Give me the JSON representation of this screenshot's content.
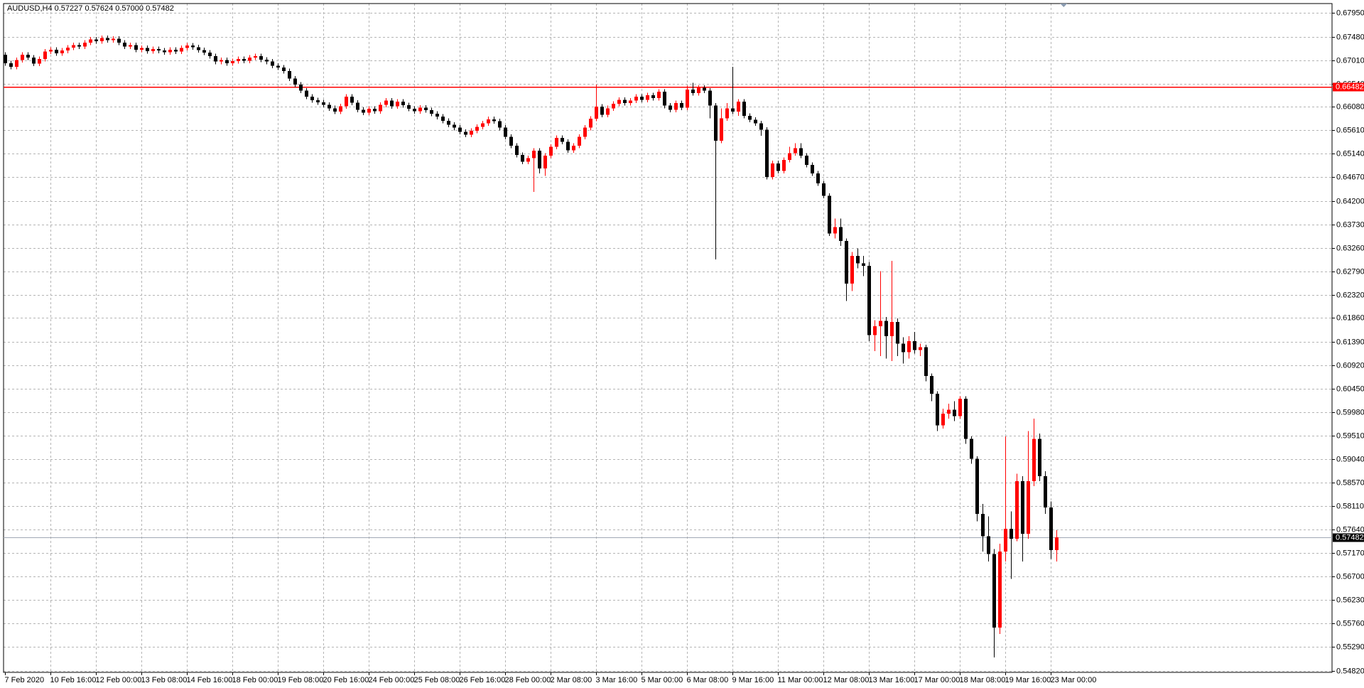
{
  "chart_data": {
    "type": "candlestick",
    "title": "AUDUSD,H4  0.57227 0.57624 0.57000 0.57482",
    "up_color": "#ff0000",
    "down_color": "#000000",
    "grid": true,
    "level": {
      "value": 0.66482,
      "label": "0.66482",
      "color": "#ff0000"
    },
    "last": {
      "value": 0.57482,
      "label": "0.57482"
    },
    "ylim": [
      0.5482,
      0.6795
    ],
    "yticks": [
      {
        "value": 0.6795,
        "label": "0.67950"
      },
      {
        "value": 0.6748,
        "label": "0.67480"
      },
      {
        "value": 0.6701,
        "label": "0.67010"
      },
      {
        "value": 0.6654,
        "label": "0.66540"
      },
      {
        "value": 0.6608,
        "label": "0.66080"
      },
      {
        "value": 0.6561,
        "label": "0.65610"
      },
      {
        "value": 0.6514,
        "label": "0.65140"
      },
      {
        "value": 0.6467,
        "label": "0.64670"
      },
      {
        "value": 0.642,
        "label": "0.64200"
      },
      {
        "value": 0.6373,
        "label": "0.63730"
      },
      {
        "value": 0.6326,
        "label": "0.63260"
      },
      {
        "value": 0.6279,
        "label": "0.62790"
      },
      {
        "value": 0.6232,
        "label": "0.62320"
      },
      {
        "value": 0.6186,
        "label": "0.61860"
      },
      {
        "value": 0.6139,
        "label": "0.61390"
      },
      {
        "value": 0.6092,
        "label": "0.60920"
      },
      {
        "value": 0.6045,
        "label": "0.60450"
      },
      {
        "value": 0.5998,
        "label": "0.59980"
      },
      {
        "value": 0.5951,
        "label": "0.59510"
      },
      {
        "value": 0.5904,
        "label": "0.59040"
      },
      {
        "value": 0.5857,
        "label": "0.58570"
      },
      {
        "value": 0.5811,
        "label": "0.58110"
      },
      {
        "value": 0.5764,
        "label": "0.57640"
      },
      {
        "value": 0.5717,
        "label": "0.57170"
      },
      {
        "value": 0.567,
        "label": "0.56700"
      },
      {
        "value": 0.5623,
        "label": "0.56230"
      },
      {
        "value": 0.5576,
        "label": "0.55760"
      },
      {
        "value": 0.5529,
        "label": "0.55290"
      },
      {
        "value": 0.5482,
        "label": "0.54820"
      }
    ],
    "categories": [
      "7 Feb 2020",
      null,
      null,
      null,
      null,
      null,
      null,
      null,
      "10 Feb 16:00",
      null,
      null,
      null,
      null,
      null,
      null,
      null,
      "12 Feb 00:00",
      null,
      null,
      null,
      null,
      null,
      null,
      null,
      "13 Feb 08:00",
      null,
      null,
      null,
      null,
      null,
      null,
      null,
      "14 Feb 16:00",
      null,
      null,
      null,
      null,
      null,
      null,
      null,
      "18 Feb 00:00",
      null,
      null,
      null,
      null,
      null,
      null,
      null,
      "19 Feb 08:00",
      null,
      null,
      null,
      null,
      null,
      null,
      null,
      "20 Feb 16:00",
      null,
      null,
      null,
      null,
      null,
      null,
      null,
      "24 Feb 00:00",
      null,
      null,
      null,
      null,
      null,
      null,
      null,
      "25 Feb 08:00",
      null,
      null,
      null,
      null,
      null,
      null,
      null,
      "26 Feb 16:00",
      null,
      null,
      null,
      null,
      null,
      null,
      null,
      "28 Feb 00:00",
      null,
      null,
      null,
      null,
      null,
      null,
      null,
      "2 Mar 08:00",
      null,
      null,
      null,
      null,
      null,
      null,
      null,
      "3 Mar 16:00",
      null,
      null,
      null,
      null,
      null,
      null,
      null,
      "5 Mar 00:00",
      null,
      null,
      null,
      null,
      null,
      null,
      null,
      "6 Mar 08:00",
      null,
      null,
      null,
      null,
      null,
      null,
      null,
      "9 Mar 16:00",
      null,
      null,
      null,
      null,
      null,
      null,
      null,
      "11 Mar 00:00",
      null,
      null,
      null,
      null,
      null,
      null,
      null,
      "12 Mar 08:00",
      null,
      null,
      null,
      null,
      null,
      null,
      null,
      "13 Mar 16:00",
      null,
      null,
      null,
      null,
      null,
      null,
      null,
      "17 Mar 00:00",
      null,
      null,
      null,
      null,
      null,
      null,
      null,
      "18 Mar 08:00",
      null,
      null,
      null,
      null,
      null,
      null,
      null,
      "19 Mar 16:00",
      null,
      null,
      null,
      null,
      null,
      null,
      null,
      "23 Mar 00:00",
      null
    ],
    "candles": [
      [
        0.6712,
        0.6717,
        0.669,
        0.6695
      ],
      [
        0.6695,
        0.67,
        0.6683,
        0.6688
      ],
      [
        0.6688,
        0.6706,
        0.6683,
        0.6701
      ],
      [
        0.6701,
        0.6717,
        0.6696,
        0.6712
      ],
      [
        0.6712,
        0.6717,
        0.6701,
        0.6706
      ],
      [
        0.6706,
        0.6711,
        0.6689,
        0.6694
      ],
      [
        0.6694,
        0.6708,
        0.6689,
        0.6703
      ],
      [
        0.6703,
        0.6723,
        0.6698,
        0.6718
      ],
      [
        0.6718,
        0.6727,
        0.6713,
        0.6722
      ],
      [
        0.6722,
        0.6727,
        0.671,
        0.6715
      ],
      [
        0.6715,
        0.6725,
        0.671,
        0.672
      ],
      [
        0.672,
        0.6731,
        0.6715,
        0.6726
      ],
      [
        0.6726,
        0.6736,
        0.6721,
        0.6731
      ],
      [
        0.6731,
        0.6736,
        0.6723,
        0.6728
      ],
      [
        0.6728,
        0.6741,
        0.6723,
        0.6736
      ],
      [
        0.6736,
        0.6747,
        0.6731,
        0.6742
      ],
      [
        0.6742,
        0.6747,
        0.6734,
        0.6739
      ],
      [
        0.6739,
        0.675,
        0.6734,
        0.6745
      ],
      [
        0.6745,
        0.675,
        0.6736,
        0.6741
      ],
      [
        0.6741,
        0.6749,
        0.6736,
        0.6744
      ],
      [
        0.6744,
        0.6749,
        0.6731,
        0.6736
      ],
      [
        0.6736,
        0.6741,
        0.6723,
        0.6728
      ],
      [
        0.6728,
        0.6736,
        0.6723,
        0.6731
      ],
      [
        0.6731,
        0.6736,
        0.6717,
        0.6722
      ],
      [
        0.6722,
        0.673,
        0.6717,
        0.6725
      ],
      [
        0.6725,
        0.673,
        0.6714,
        0.6719
      ],
      [
        0.6719,
        0.6728,
        0.6714,
        0.6723
      ],
      [
        0.6723,
        0.6728,
        0.6715,
        0.672
      ],
      [
        0.672,
        0.6725,
        0.6712,
        0.6717
      ],
      [
        0.6717,
        0.6727,
        0.6712,
        0.6722
      ],
      [
        0.6722,
        0.6727,
        0.6713,
        0.6718
      ],
      [
        0.6718,
        0.673,
        0.6713,
        0.6725
      ],
      [
        0.6725,
        0.6735,
        0.672,
        0.673
      ],
      [
        0.673,
        0.6735,
        0.6722,
        0.6727
      ],
      [
        0.6727,
        0.6732,
        0.6716,
        0.6721
      ],
      [
        0.6721,
        0.6726,
        0.6711,
        0.6716
      ],
      [
        0.6716,
        0.6721,
        0.6704,
        0.6709
      ],
      [
        0.6709,
        0.6714,
        0.6693,
        0.6698
      ],
      [
        0.6698,
        0.6706,
        0.6693,
        0.6701
      ],
      [
        0.6701,
        0.6706,
        0.669,
        0.6695
      ],
      [
        0.6695,
        0.6704,
        0.669,
        0.6699
      ],
      [
        0.6699,
        0.6708,
        0.6694,
        0.6703
      ],
      [
        0.6703,
        0.6708,
        0.6695,
        0.67
      ],
      [
        0.67,
        0.6711,
        0.6695,
        0.6706
      ],
      [
        0.6706,
        0.6714,
        0.6701,
        0.6709
      ],
      [
        0.6709,
        0.6714,
        0.6697,
        0.6702
      ],
      [
        0.6702,
        0.6707,
        0.6693,
        0.6698
      ],
      [
        0.6698,
        0.6703,
        0.6685,
        0.669
      ],
      [
        0.669,
        0.6695,
        0.6681,
        0.6686
      ],
      [
        0.6686,
        0.6691,
        0.6674,
        0.6679
      ],
      [
        0.6679,
        0.6684,
        0.6659,
        0.6664
      ],
      [
        0.6664,
        0.6669,
        0.6647,
        0.6652
      ],
      [
        0.6652,
        0.6657,
        0.6635,
        0.664
      ],
      [
        0.664,
        0.6645,
        0.6623,
        0.6628
      ],
      [
        0.6628,
        0.6633,
        0.6616,
        0.6621
      ],
      [
        0.6621,
        0.6626,
        0.6612,
        0.6617
      ],
      [
        0.6617,
        0.6622,
        0.6607,
        0.6612
      ],
      [
        0.6612,
        0.6617,
        0.66,
        0.6605
      ],
      [
        0.6605,
        0.661,
        0.6593,
        0.6598
      ],
      [
        0.6598,
        0.6614,
        0.6593,
        0.6609
      ],
      [
        0.6609,
        0.6633,
        0.6604,
        0.6628
      ],
      [
        0.6628,
        0.6633,
        0.6611,
        0.6616
      ],
      [
        0.6616,
        0.6621,
        0.6597,
        0.6602
      ],
      [
        0.6602,
        0.6607,
        0.6591,
        0.6596
      ],
      [
        0.6596,
        0.6609,
        0.6591,
        0.6604
      ],
      [
        0.6604,
        0.6609,
        0.6594,
        0.6599
      ],
      [
        0.6599,
        0.6617,
        0.6594,
        0.6612
      ],
      [
        0.6612,
        0.6625,
        0.6607,
        0.662
      ],
      [
        0.662,
        0.6625,
        0.6604,
        0.6609
      ],
      [
        0.6609,
        0.6623,
        0.6604,
        0.6618
      ],
      [
        0.6618,
        0.6623,
        0.6606,
        0.6611
      ],
      [
        0.6611,
        0.6616,
        0.6599,
        0.6604
      ],
      [
        0.6604,
        0.6609,
        0.6594,
        0.6599
      ],
      [
        0.6599,
        0.6611,
        0.6594,
        0.6606
      ],
      [
        0.6606,
        0.6611,
        0.6596,
        0.6601
      ],
      [
        0.6601,
        0.6606,
        0.6589,
        0.6594
      ],
      [
        0.6594,
        0.6599,
        0.6583,
        0.6588
      ],
      [
        0.6588,
        0.6593,
        0.6575,
        0.658
      ],
      [
        0.658,
        0.6585,
        0.6567,
        0.6572
      ],
      [
        0.6572,
        0.6577,
        0.6561,
        0.6566
      ],
      [
        0.6566,
        0.6571,
        0.6553,
        0.6558
      ],
      [
        0.6558,
        0.6563,
        0.6547,
        0.6552
      ],
      [
        0.6552,
        0.6565,
        0.6547,
        0.656
      ],
      [
        0.656,
        0.6573,
        0.6555,
        0.6568
      ],
      [
        0.6568,
        0.658,
        0.6563,
        0.6575
      ],
      [
        0.6575,
        0.6588,
        0.657,
        0.6583
      ],
      [
        0.6583,
        0.6588,
        0.6574,
        0.6579
      ],
      [
        0.6579,
        0.6584,
        0.6561,
        0.6566
      ],
      [
        0.6566,
        0.6571,
        0.6543,
        0.6548
      ],
      [
        0.6548,
        0.6553,
        0.6525,
        0.653
      ],
      [
        0.653,
        0.6535,
        0.6507,
        0.6512
      ],
      [
        0.6512,
        0.6517,
        0.6493,
        0.6498
      ],
      [
        0.6498,
        0.651,
        0.6493,
        0.6505
      ],
      [
        0.6505,
        0.6525,
        0.6438,
        0.652
      ],
      [
        0.652,
        0.6525,
        0.6475,
        0.6485
      ],
      [
        0.6485,
        0.6515,
        0.647,
        0.651
      ],
      [
        0.651,
        0.6533,
        0.6505,
        0.6528
      ],
      [
        0.6528,
        0.6551,
        0.6523,
        0.6546
      ],
      [
        0.6546,
        0.6551,
        0.6533,
        0.6538
      ],
      [
        0.6538,
        0.6543,
        0.6516,
        0.6521
      ],
      [
        0.6521,
        0.6535,
        0.6516,
        0.653
      ],
      [
        0.653,
        0.6553,
        0.6525,
        0.6548
      ],
      [
        0.6548,
        0.6571,
        0.6543,
        0.6566
      ],
      [
        0.6566,
        0.6589,
        0.6561,
        0.6584
      ],
      [
        0.6584,
        0.6652,
        0.6579,
        0.6608
      ],
      [
        0.6608,
        0.6613,
        0.6587,
        0.6592
      ],
      [
        0.6592,
        0.661,
        0.6587,
        0.6605
      ],
      [
        0.6605,
        0.6619,
        0.66,
        0.6614
      ],
      [
        0.6614,
        0.6627,
        0.6609,
        0.6622
      ],
      [
        0.6622,
        0.6627,
        0.661,
        0.6615
      ],
      [
        0.6615,
        0.6625,
        0.661,
        0.662
      ],
      [
        0.662,
        0.6633,
        0.6615,
        0.6628
      ],
      [
        0.6628,
        0.6633,
        0.6617,
        0.6622
      ],
      [
        0.6622,
        0.6636,
        0.6617,
        0.6631
      ],
      [
        0.6631,
        0.6636,
        0.662,
        0.6625
      ],
      [
        0.6625,
        0.6643,
        0.662,
        0.6638
      ],
      [
        0.6638,
        0.6643,
        0.6605,
        0.661
      ],
      [
        0.661,
        0.6615,
        0.6597,
        0.6602
      ],
      [
        0.6602,
        0.662,
        0.6597,
        0.6615
      ],
      [
        0.6615,
        0.662,
        0.6601,
        0.6606
      ],
      [
        0.6606,
        0.665,
        0.6601,
        0.6642
      ],
      [
        0.6642,
        0.6656,
        0.663,
        0.6635
      ],
      [
        0.6635,
        0.6651,
        0.663,
        0.6646
      ],
      [
        0.6646,
        0.6651,
        0.6635,
        0.664
      ],
      [
        0.664,
        0.6645,
        0.6585,
        0.661
      ],
      [
        0.661,
        0.6615,
        0.6303,
        0.654
      ],
      [
        0.654,
        0.6605,
        0.6535,
        0.6585
      ],
      [
        0.6585,
        0.6615,
        0.658,
        0.6605
      ],
      [
        0.6605,
        0.6688,
        0.6593,
        0.6598
      ],
      [
        0.6598,
        0.6623,
        0.659,
        0.6618
      ],
      [
        0.6618,
        0.6623,
        0.6585,
        0.659
      ],
      [
        0.659,
        0.6595,
        0.6577,
        0.6582
      ],
      [
        0.6582,
        0.6587,
        0.657,
        0.6575
      ],
      [
        0.6575,
        0.658,
        0.655,
        0.6562
      ],
      [
        0.6562,
        0.6567,
        0.6463,
        0.6468
      ],
      [
        0.6468,
        0.65,
        0.6463,
        0.6495
      ],
      [
        0.6495,
        0.65,
        0.6475,
        0.648
      ],
      [
        0.648,
        0.6507,
        0.6475,
        0.6502
      ],
      [
        0.6502,
        0.6528,
        0.6497,
        0.6515
      ],
      [
        0.6515,
        0.6535,
        0.651,
        0.6525
      ],
      [
        0.6525,
        0.6535,
        0.6505,
        0.651
      ],
      [
        0.651,
        0.6515,
        0.6487,
        0.6492
      ],
      [
        0.6492,
        0.6497,
        0.647,
        0.6475
      ],
      [
        0.6475,
        0.648,
        0.645,
        0.6455
      ],
      [
        0.6455,
        0.646,
        0.6425,
        0.643
      ],
      [
        0.643,
        0.6435,
        0.635,
        0.6355
      ],
      [
        0.6355,
        0.6385,
        0.6345,
        0.6368
      ],
      [
        0.6368,
        0.6385,
        0.633,
        0.634
      ],
      [
        0.634,
        0.6345,
        0.622,
        0.6255
      ],
      [
        0.6255,
        0.6318,
        0.624,
        0.631
      ],
      [
        0.631,
        0.6325,
        0.6285,
        0.6295
      ],
      [
        0.6295,
        0.631,
        0.627,
        0.629
      ],
      [
        0.629,
        0.6298,
        0.614,
        0.6152
      ],
      [
        0.6152,
        0.6182,
        0.612,
        0.617
      ],
      [
        0.617,
        0.628,
        0.611,
        0.618
      ],
      [
        0.618,
        0.6188,
        0.6105,
        0.615
      ],
      [
        0.615,
        0.63,
        0.61,
        0.6178
      ],
      [
        0.6178,
        0.6185,
        0.611,
        0.6135
      ],
      [
        0.6135,
        0.6148,
        0.6095,
        0.6118
      ],
      [
        0.6118,
        0.615,
        0.6105,
        0.614
      ],
      [
        0.614,
        0.6158,
        0.6115,
        0.6122
      ],
      [
        0.6122,
        0.6135,
        0.611,
        0.6128
      ],
      [
        0.6128,
        0.6133,
        0.606,
        0.607
      ],
      [
        0.607,
        0.6075,
        0.602,
        0.6035
      ],
      [
        0.6035,
        0.604,
        0.596,
        0.5972
      ],
      [
        0.5972,
        0.6005,
        0.5965,
        0.5995
      ],
      [
        0.5995,
        0.6015,
        0.5985,
        0.6003
      ],
      [
        0.6003,
        0.602,
        0.598,
        0.599
      ],
      [
        0.599,
        0.603,
        0.5985,
        0.6025
      ],
      [
        0.6025,
        0.603,
        0.5935,
        0.5945
      ],
      [
        0.5945,
        0.595,
        0.5895,
        0.5905
      ],
      [
        0.5905,
        0.591,
        0.578,
        0.5795
      ],
      [
        0.5795,
        0.5815,
        0.572,
        0.575
      ],
      [
        0.575,
        0.579,
        0.57,
        0.5715
      ],
      [
        0.5715,
        0.5725,
        0.5508,
        0.5568
      ],
      [
        0.5568,
        0.5735,
        0.5555,
        0.572
      ],
      [
        0.572,
        0.595,
        0.57,
        0.5765
      ],
      [
        0.5765,
        0.58,
        0.5665,
        0.5745
      ],
      [
        0.5745,
        0.5875,
        0.574,
        0.586
      ],
      [
        0.586,
        0.587,
        0.57,
        0.5755
      ],
      [
        0.5755,
        0.596,
        0.5745,
        0.586
      ],
      [
        0.586,
        0.5985,
        0.585,
        0.5945
      ],
      [
        0.5945,
        0.5955,
        0.586,
        0.587
      ],
      [
        0.587,
        0.588,
        0.5795,
        0.5808
      ],
      [
        0.5808,
        0.582,
        0.5705,
        0.57227
      ],
      [
        0.57227,
        0.57624,
        0.57,
        0.57482
      ]
    ]
  }
}
